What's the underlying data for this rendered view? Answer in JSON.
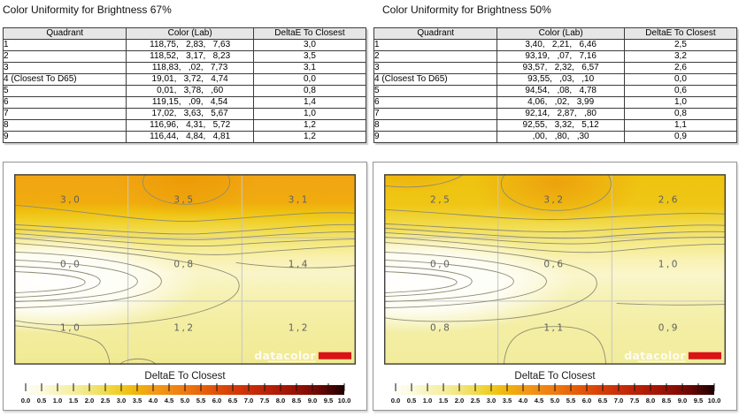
{
  "sections": [
    {
      "title": "Color Uniformity for Brightness 67%",
      "table": {
        "headers": [
          "Quadrant",
          "Color (Lab)",
          "DeltaE To Closest"
        ],
        "rows": [
          [
            "1",
            "118,75,   2,83,   7,63",
            "3,0"
          ],
          [
            "2",
            "118,52,   3,17,   8,23",
            "3,5"
          ],
          [
            "3",
            "118,83,   ,02,   7,73",
            "3,1"
          ],
          [
            "4 (Closest To D65)",
            "19,01,   3,72,   4,74",
            "0,0"
          ],
          [
            "5",
            "0,01,   3,78,   ,60",
            "0,8"
          ],
          [
            "6",
            "119,15,   ,09,   4,54",
            "1,4"
          ],
          [
            "7",
            "17,02,   3,63,   5,67",
            "1,0"
          ],
          [
            "8",
            "116,96,   4,31,   5,72",
            "1,2"
          ],
          [
            "9",
            "116,44,   4,84,   4,81",
            "1,2"
          ]
        ]
      },
      "plot_cells": [
        "3,0",
        "3,5",
        "3,1",
        "0,0",
        "0,8",
        "1,4",
        "1,0",
        "1,2",
        "1,2"
      ]
    },
    {
      "title": "Color Uniformity for Brightness 50%",
      "table": {
        "headers": [
          "Quadrant",
          "Color (Lab)",
          "DeltaE To Closest"
        ],
        "rows": [
          [
            "1",
            "3,40,   2,21,   6,46",
            "2,5"
          ],
          [
            "2",
            "93,19,   ,07,   7,16",
            "3,2"
          ],
          [
            "3",
            "93,57,   2,32,   6,57",
            "2,6"
          ],
          [
            "4 (Closest To D65)",
            "93,55,   ,03,   ,10",
            "0,0"
          ],
          [
            "5",
            "94,54,   ,08,   4,78",
            "0,6"
          ],
          [
            "6",
            "4,06,   ,02,   3,99",
            "1,0"
          ],
          [
            "7",
            "92,14,   2,87,   ,80",
            "0,8"
          ],
          [
            "8",
            "92,55,   3,32,   5,12",
            "1,1"
          ],
          [
            "9",
            ",00,   ,80,   ,30",
            "0,9"
          ]
        ]
      },
      "plot_cells": [
        "2,5",
        "3,2",
        "2,6",
        "0,0",
        "0,6",
        "1,0",
        "0,8",
        "1,1",
        "0,9"
      ]
    }
  ],
  "colorbar": {
    "title": "DeltaE To Closest",
    "ticks": [
      "0.0",
      "0.5",
      "1.0",
      "1.5",
      "2.0",
      "2.5",
      "3.0",
      "3.5",
      "4.0",
      "4.5",
      "5.0",
      "5.5",
      "6.0",
      "6.5",
      "7.0",
      "7.5",
      "8.0",
      "8.5",
      "9.0",
      "9.5",
      "10.0"
    ],
    "range": [
      0.0,
      10.0
    ]
  },
  "logo": {
    "text": "datacolor",
    "bar_color": "#da1317"
  },
  "colors": {
    "scale_low": "#fffef4",
    "scale_yellow": "#f0cc1e",
    "scale_orange": "#f29a16",
    "scale_red": "#c92f08",
    "scale_high": "#1c0000",
    "header_bg": "#e6e6e6"
  },
  "chart_data": [
    {
      "type": "heatmap",
      "title": "Color Uniformity for Brightness 67%",
      "rows": [
        "top",
        "middle",
        "bottom"
      ],
      "columns": [
        "left",
        "center",
        "right"
      ],
      "grid_values": [
        [
          3.0,
          3.5,
          3.1
        ],
        [
          0.0,
          0.8,
          1.4
        ],
        [
          1.0,
          1.2,
          1.2
        ]
      ],
      "scale_label": "DeltaE To Closest",
      "scale_range": [
        0.0,
        10.0
      ],
      "scale_tick_step": 0.5,
      "legend_position": "bottom"
    },
    {
      "type": "heatmap",
      "title": "Color Uniformity for Brightness 50%",
      "rows": [
        "top",
        "middle",
        "bottom"
      ],
      "columns": [
        "left",
        "center",
        "right"
      ],
      "grid_values": [
        [
          2.5,
          3.2,
          2.6
        ],
        [
          0.0,
          0.6,
          1.0
        ],
        [
          0.8,
          1.1,
          0.9
        ]
      ],
      "scale_label": "DeltaE To Closest",
      "scale_range": [
        0.0,
        10.0
      ],
      "scale_tick_step": 0.5,
      "legend_position": "bottom"
    }
  ]
}
